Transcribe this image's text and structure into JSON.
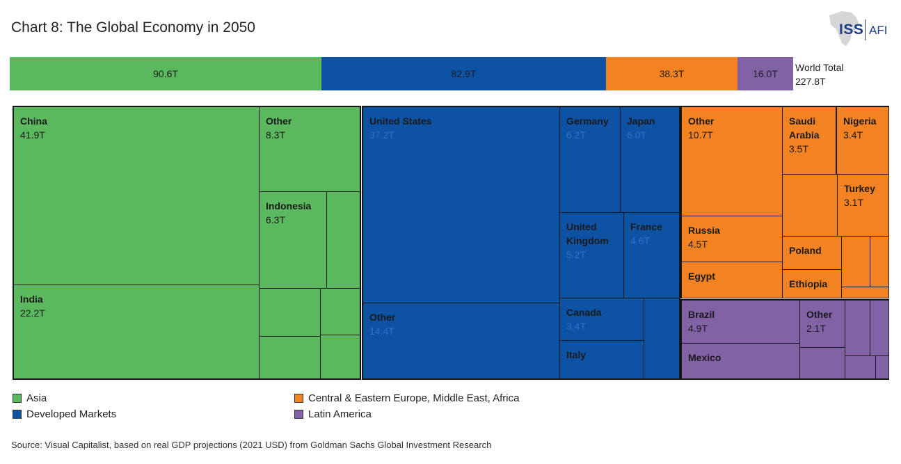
{
  "chart_data": {
    "type": "treemap",
    "title": "Chart 8: The Global Economy in 2050",
    "unit": "T (trillion USD, real 2021)",
    "world_total": {
      "label": "World Total",
      "value": "227.8T"
    },
    "groups": [
      {
        "name": "Asia",
        "total": "90.6T",
        "color": "#5cb85f",
        "items": [
          {
            "name": "China",
            "value": "41.9T"
          },
          {
            "name": "Other",
            "value": "8.3T"
          },
          {
            "name": "Indonesia",
            "value": "6.3T"
          },
          {
            "name": "India",
            "value": "22.2T"
          }
        ]
      },
      {
        "name": "Developed Markets",
        "total": "82.9T",
        "color": "#0e52a4",
        "items": [
          {
            "name": "United States",
            "value": "37.2T"
          },
          {
            "name": "Germany",
            "value": "6.2T"
          },
          {
            "name": "Japan",
            "value": "6.0T"
          },
          {
            "name": "United Kingdom",
            "value": "5.2T"
          },
          {
            "name": "France",
            "value": "4.6T"
          },
          {
            "name": "Canada",
            "value": "3.4T"
          },
          {
            "name": "Italy",
            "value": ""
          },
          {
            "name": "Other",
            "value": "14.4T"
          }
        ]
      },
      {
        "name": "Central & Eastern Europe, Middle East, Africa",
        "total": "38.3T",
        "color": "#f38322",
        "items": [
          {
            "name": "Other",
            "value": "10.7T"
          },
          {
            "name": "Saudi Arabia",
            "value": "3.5T"
          },
          {
            "name": "Nigeria",
            "value": "3.4T"
          },
          {
            "name": "Turkey",
            "value": "3.1T"
          },
          {
            "name": "Russia",
            "value": "4.5T"
          },
          {
            "name": "Poland",
            "value": ""
          },
          {
            "name": "Egypt",
            "value": ""
          },
          {
            "name": "Ethiopia",
            "value": ""
          }
        ]
      },
      {
        "name": "Latin America",
        "total": "16.0T",
        "color": "#8162a5",
        "items": [
          {
            "name": "Brazil",
            "value": "4.9T"
          },
          {
            "name": "Other",
            "value": "2.1T"
          },
          {
            "name": "Mexico",
            "value": ""
          }
        ]
      }
    ],
    "legend": [
      "Asia",
      "Developed Markets",
      "Central & Eastern Europe, Middle East, Africa",
      "Latin America"
    ]
  },
  "logo": {
    "left": "ISS",
    "right": "AFI"
  },
  "source": "Source: Visual Capitalist, based on real GDP projections (2021 USD) from Goldman Sachs Global Investment Research"
}
